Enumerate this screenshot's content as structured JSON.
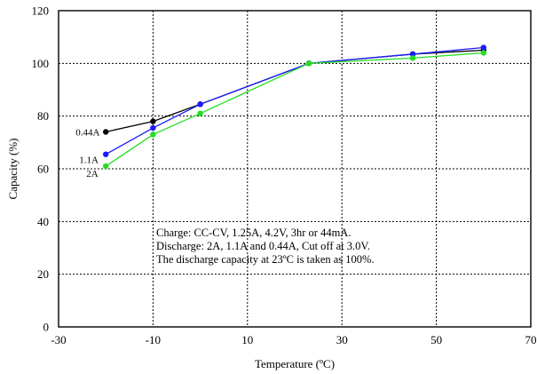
{
  "chart_data": {
    "type": "line",
    "xlabel": "Temperature (ºC)",
    "ylabel": "Capacity (%)",
    "xlim": [
      -30,
      70
    ],
    "ylim": [
      0,
      120
    ],
    "x_ticks": [
      -30,
      -10,
      10,
      30,
      50,
      70
    ],
    "y_ticks": [
      0,
      20,
      40,
      60,
      80,
      100,
      120
    ],
    "grid": true,
    "series": [
      {
        "name": "0.44A",
        "color": "#000000",
        "x": [
          -20,
          -10,
          0,
          23,
          45,
          60
        ],
        "y": [
          74,
          78,
          84.5,
          100,
          103.5,
          105
        ]
      },
      {
        "name": "1.1A",
        "color": "#1a1aff",
        "x": [
          -20,
          -10,
          0,
          23,
          45,
          60
        ],
        "y": [
          65.5,
          75.5,
          84.5,
          100,
          103.5,
          106
        ]
      },
      {
        "name": "2A",
        "color": "#22dd22",
        "x": [
          -20,
          -10,
          0,
          23,
          45,
          60
        ],
        "y": [
          61,
          73,
          81,
          100,
          102,
          104
        ]
      }
    ],
    "annotations": [
      "Charge: CC-CV, 1.25A, 4.2V, 3hr or 44mA.",
      "Discharge: 2A, 1.1A and 0.44A, Cut off at 3.0V.",
      "The discharge capacity at 23ºC is taken as 100%."
    ]
  }
}
